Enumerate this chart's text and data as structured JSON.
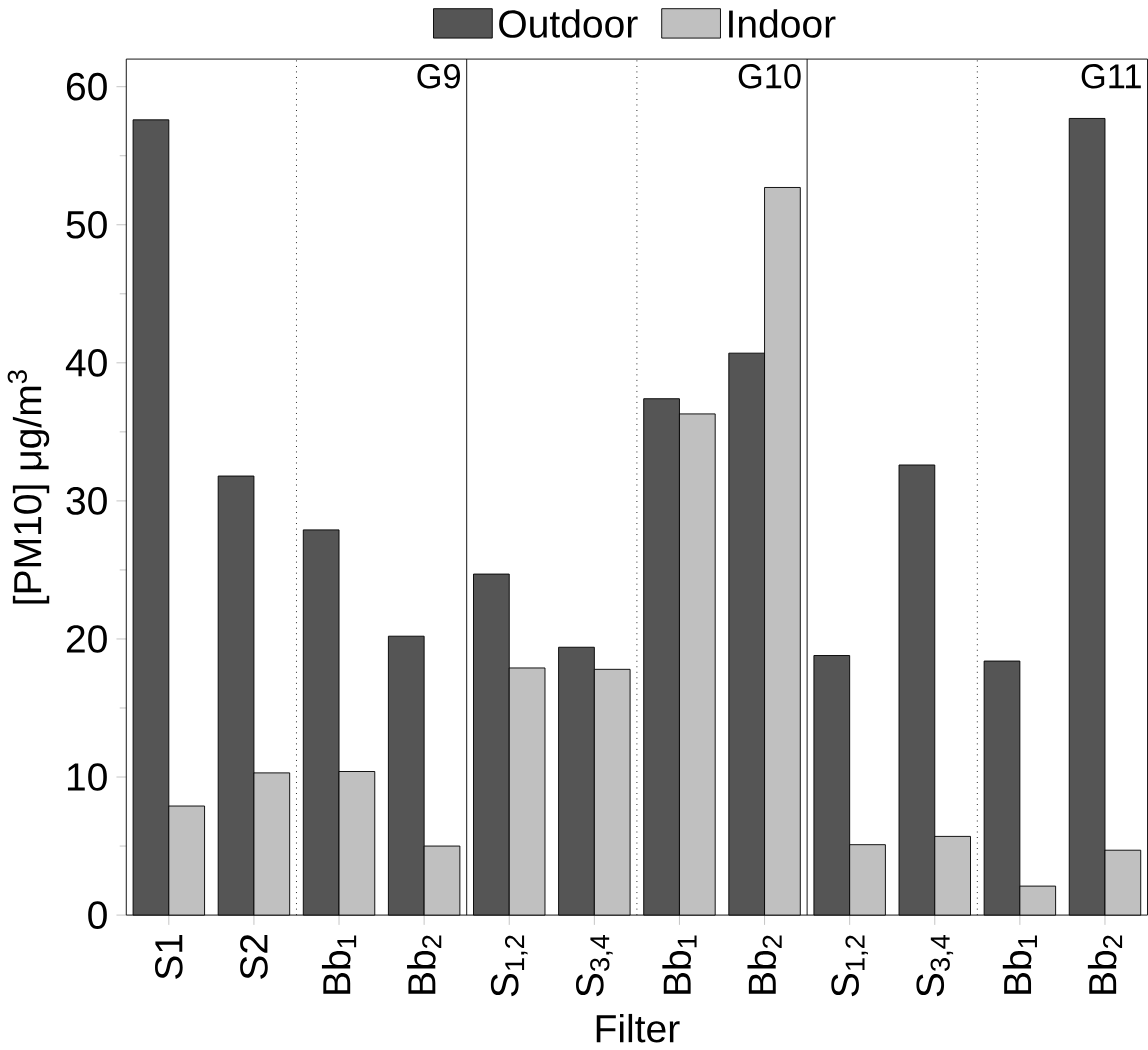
{
  "chart_data": {
    "type": "bar",
    "xlabel": "Filter",
    "ylabel": "[PM10] μg/m$^{3}$",
    "categories": [
      "S1",
      "S2",
      "Bb$_{1}$",
      "Bb$_{2}$",
      "S$_{1,2}$",
      "S$_{3,4}$",
      "Bb$_{1}$",
      "Bb$_{2}$",
      "S$_{1,2}$",
      "S$_{3,4}$",
      "Bb$_{1}$",
      "Bb$_{2}$"
    ],
    "series": [
      {
        "name": "Outdoor",
        "color": "#555555",
        "values": [
          57.6,
          31.8,
          27.9,
          20.2,
          24.7,
          19.4,
          37.4,
          40.7,
          18.8,
          32.6,
          18.4,
          57.7
        ]
      },
      {
        "name": "Indoor",
        "color": "#c0c0c0",
        "values": [
          7.9,
          10.3,
          10.4,
          5.0,
          17.9,
          17.8,
          36.3,
          52.7,
          5.1,
          5.7,
          2.1,
          4.7
        ]
      }
    ],
    "ylim": [
      0,
      62
    ],
    "yticks": [
      0,
      10,
      20,
      30,
      40,
      50,
      60
    ],
    "annotations": [
      "G9",
      "G10",
      "G11"
    ],
    "legend": "top"
  }
}
